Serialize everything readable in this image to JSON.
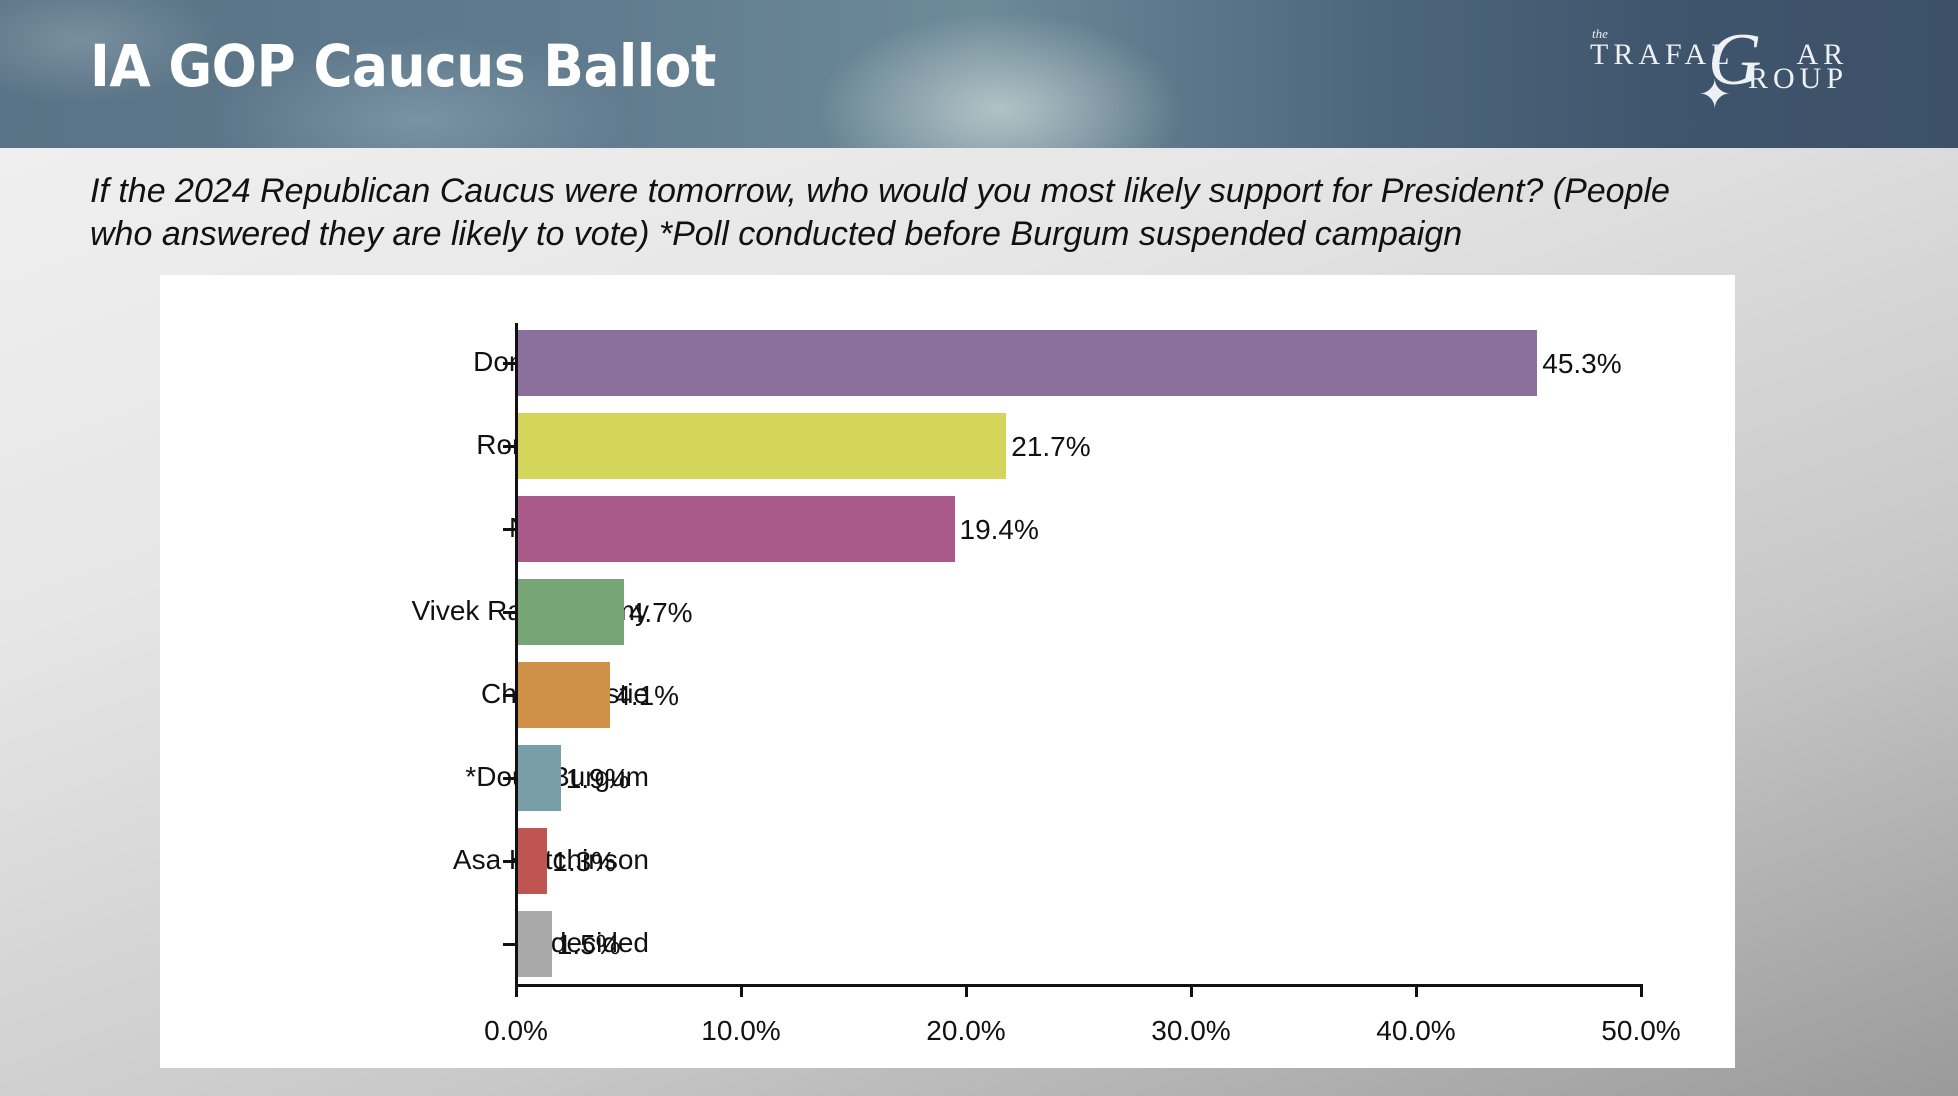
{
  "header": {
    "title": "IA GOP Caucus Ballot",
    "logo": {
      "small": "the",
      "line1": "TRAFAL",
      "line1b": "AR",
      "big_letter": "G",
      "line2": "ROUP",
      "star_icon": "✦"
    }
  },
  "subtitle": {
    "line1": "If the 2024 Republican Caucus were tomorrow, who would you most likely support for President? (People",
    "line2": "who answered they are likely to vote) *Poll conducted before Burgum suspended campaign"
  },
  "chart_data": {
    "type": "bar",
    "orientation": "horizontal",
    "title": "IA GOP Caucus Ballot",
    "subtitle": "If the 2024 Republican Caucus were tomorrow, who would you most likely support for President? (People who answered they are likely to vote) *Poll conducted before Burgum suspended campaign",
    "categories": [
      "Donald Trump",
      "Ron DeSantis",
      "Nikki Haley",
      "Vivek Ramaswamy",
      "Chris Christie",
      "*Doug Burgum",
      "Asa Hutchinson",
      "Undecided"
    ],
    "values": [
      45.3,
      21.7,
      19.4,
      4.7,
      4.1,
      1.9,
      1.3,
      1.5
    ],
    "value_labels": [
      "45.3%",
      "21.7%",
      "19.4%",
      "4.7%",
      "4.1%",
      "1.9%",
      "1.3%",
      "1.5%"
    ],
    "colors": [
      "#8b6f9c",
      "#d3d65a",
      "#a95a8a",
      "#77a575",
      "#ce9147",
      "#789ea8",
      "#be5550",
      "#a8a8a8"
    ],
    "xlabel": "",
    "ylabel": "",
    "xlim": [
      0,
      50
    ],
    "x_ticks": [
      0,
      10,
      20,
      30,
      40,
      50
    ],
    "x_tick_labels": [
      "0.0%",
      "10.0%",
      "20.0%",
      "30.0%",
      "40.0%",
      "50.0%"
    ],
    "grid": false,
    "legend": "none"
  }
}
